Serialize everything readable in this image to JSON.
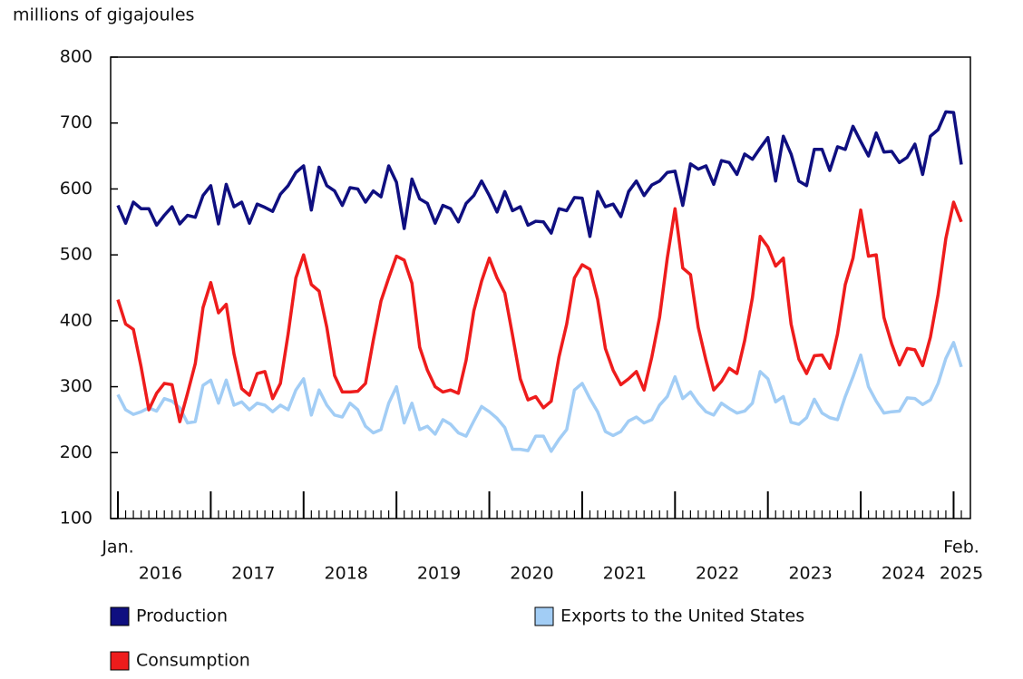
{
  "chart_data": {
    "type": "line",
    "y_axis_label": "millions of gigajoules",
    "categories": [
      "Jan.",
      null,
      null,
      null,
      null,
      null,
      null,
      null,
      null,
      null,
      null,
      null,
      null,
      null,
      null,
      null,
      null,
      null,
      null,
      null,
      null,
      null,
      null,
      null,
      null,
      null,
      null,
      null,
      null,
      null,
      null,
      null,
      null,
      null,
      null,
      null,
      null,
      null,
      null,
      null,
      null,
      null,
      null,
      null,
      null,
      null,
      null,
      null,
      null,
      null,
      null,
      null,
      null,
      null,
      null,
      null,
      null,
      null,
      null,
      null,
      null,
      null,
      null,
      null,
      null,
      null,
      null,
      null,
      null,
      null,
      null,
      null,
      null,
      null,
      null,
      null,
      null,
      null,
      null,
      null,
      null,
      null,
      null,
      null,
      null,
      null,
      null,
      null,
      null,
      null,
      null,
      null,
      null,
      null,
      null,
      null,
      null,
      null,
      null,
      null,
      null,
      null,
      null,
      null,
      null,
      null,
      null,
      null,
      null,
      "Feb."
    ],
    "year_labels": [
      "2016",
      "2017",
      "2018",
      "2019",
      "2020",
      "2021",
      "2022",
      "2023",
      "2024",
      "2025"
    ],
    "ylim": [
      100,
      800
    ],
    "yticks": [
      100,
      200,
      300,
      400,
      500,
      600,
      700,
      800
    ],
    "series": [
      {
        "name": "Production",
        "color": "#0f0f80",
        "values": [
          575,
          548,
          580,
          570,
          570,
          545,
          560,
          573,
          547,
          560,
          557,
          590,
          605,
          547,
          607,
          573,
          580,
          548,
          577,
          572,
          566,
          592,
          605,
          625,
          635,
          568,
          633,
          605,
          597,
          575,
          602,
          600,
          580,
          597,
          588,
          635,
          610,
          540,
          615,
          585,
          578,
          548,
          575,
          570,
          550,
          578,
          590,
          612,
          590,
          565,
          596,
          567,
          573,
          545,
          551,
          550,
          533,
          570,
          567,
          587,
          586,
          528,
          596,
          573,
          577,
          558,
          596,
          612,
          590,
          606,
          612,
          625,
          627,
          575,
          638,
          630,
          635,
          607,
          643,
          640,
          622,
          653,
          645,
          662,
          678,
          612,
          680,
          653,
          612,
          605,
          660,
          660,
          628,
          664,
          660,
          695,
          672,
          650,
          685,
          656,
          657,
          640,
          648,
          668,
          622,
          680,
          690,
          717,
          716,
          637
        ]
      },
      {
        "name": "Exports to the United States",
        "color": "#a2cdf5",
        "values": [
          288,
          265,
          258,
          262,
          268,
          263,
          282,
          278,
          268,
          245,
          247,
          302,
          310,
          275,
          310,
          272,
          277,
          265,
          275,
          272,
          262,
          272,
          265,
          295,
          312,
          257,
          295,
          272,
          257,
          254,
          275,
          265,
          240,
          230,
          235,
          275,
          300,
          245,
          275,
          235,
          240,
          228,
          250,
          243,
          230,
          225,
          248,
          270,
          262,
          252,
          238,
          205,
          205,
          203,
          225,
          225,
          202,
          220,
          235,
          295,
          305,
          282,
          262,
          232,
          226,
          232,
          248,
          254,
          245,
          250,
          272,
          285,
          315,
          282,
          292,
          275,
          262,
          257,
          275,
          267,
          260,
          263,
          275,
          323,
          312,
          277,
          285,
          246,
          243,
          253,
          281,
          260,
          253,
          250,
          285,
          315,
          348,
          300,
          278,
          260,
          262,
          263,
          283,
          282,
          273,
          280,
          305,
          343,
          367,
          330
        ]
      },
      {
        "name": "Consumption",
        "color": "#ee1c1c",
        "values": [
          432,
          395,
          387,
          330,
          265,
          290,
          305,
          303,
          247,
          290,
          335,
          420,
          458,
          412,
          425,
          350,
          297,
          287,
          320,
          323,
          282,
          305,
          380,
          465,
          500,
          455,
          445,
          390,
          317,
          292,
          292,
          293,
          305,
          370,
          430,
          465,
          498,
          492,
          457,
          360,
          325,
          300,
          292,
          295,
          290,
          340,
          415,
          460,
          495,
          465,
          442,
          378,
          312,
          280,
          285,
          268,
          278,
          345,
          395,
          465,
          485,
          478,
          432,
          358,
          325,
          303,
          312,
          323,
          295,
          345,
          405,
          495,
          570,
          480,
          470,
          390,
          340,
          295,
          308,
          328,
          320,
          370,
          435,
          528,
          512,
          483,
          495,
          395,
          342,
          320,
          347,
          348,
          328,
          380,
          455,
          495,
          568,
          498,
          500,
          405,
          365,
          333,
          358,
          356,
          332,
          375,
          440,
          525,
          580,
          550
        ]
      }
    ]
  }
}
